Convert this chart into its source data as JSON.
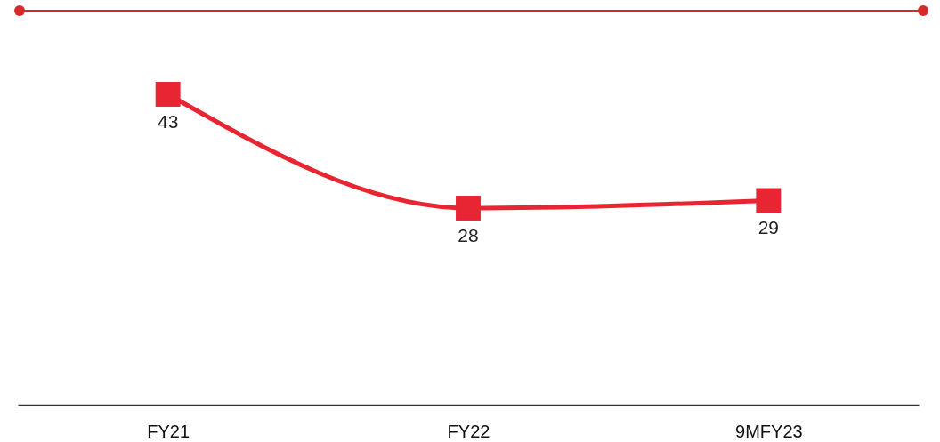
{
  "chart_data": {
    "type": "line",
    "categories": [
      "FY21",
      "FY22",
      "9MFY23"
    ],
    "series": [
      {
        "color": "#e82532",
        "values": [
          43,
          28,
          29
        ]
      }
    ],
    "marker": "square",
    "data_labels": true,
    "grid": false,
    "tick_labels": "x"
  }
}
